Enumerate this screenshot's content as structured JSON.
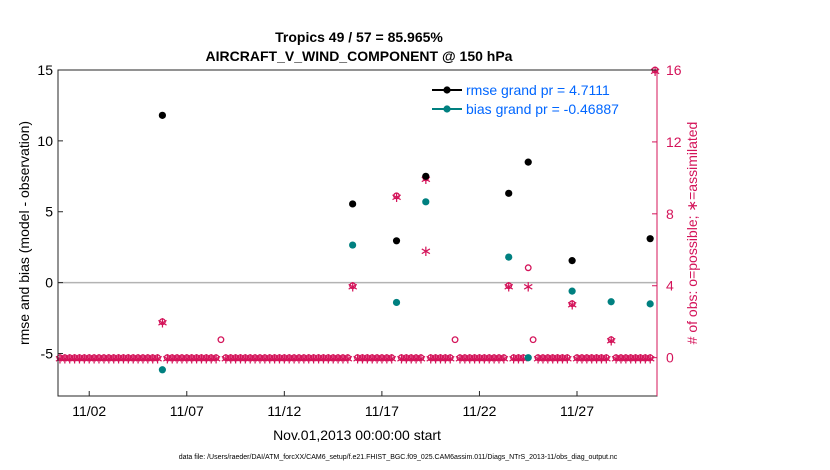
{
  "chart_data": {
    "type": "scatter",
    "title_line1": "Tropics 49 / 57 = 85.965%",
    "title_line2": "AIRCRAFT_V_WIND_COMPONENT @ 150 hPa",
    "xlabel": "Nov.01,2013 00:00:00 start",
    "ylabel_left": "rmse and bias (model - observation)",
    "ylabel_right": "# of obs: o=possible; ∗=assimilated",
    "footer": "data file: /Users/raeder/DAI/ATM_forcXX/CAM6_setup/f.e21.FHIST_BGC.f09_025.CAM6assim.011/Diags_NTrS_2013-11/obs_diag_output.nc",
    "x_range_days": [
      0.4,
      31.1
    ],
    "x_ticks": [
      {
        "day": 2,
        "label": "11/02"
      },
      {
        "day": 7,
        "label": "11/07"
      },
      {
        "day": 12,
        "label": "11/12"
      },
      {
        "day": 17,
        "label": "11/17"
      },
      {
        "day": 22,
        "label": "11/22"
      },
      {
        "day": 27,
        "label": "11/27"
      }
    ],
    "ylim_left": [
      -8,
      15
    ],
    "yticks_left": [
      {
        "v": -5,
        "label": "-5"
      },
      {
        "v": 0,
        "label": "0"
      },
      {
        "v": 5,
        "label": "5"
      },
      {
        "v": 10,
        "label": "10"
      },
      {
        "v": 15,
        "label": "15"
      }
    ],
    "ylim_right": [
      -2.133,
      16
    ],
    "yticks_right": [
      {
        "v": 0,
        "label": "0"
      },
      {
        "v": 4,
        "label": "4"
      },
      {
        "v": 8,
        "label": "8"
      },
      {
        "v": 12,
        "label": "12"
      },
      {
        "v": 16,
        "label": "16"
      }
    ],
    "legend": [
      {
        "name": "rmse grand pr = 4.7111",
        "color": "#000000"
      },
      {
        "name": "bias grand pr = -0.46887",
        "color": "#008080"
      }
    ],
    "colors": {
      "rmse": "#000000",
      "bias": "#008080",
      "obs": "#d4145a",
      "zero_line": "#b3b3b3",
      "axis": "#262626",
      "legend_text": "#0066ff"
    },
    "rmse": [
      {
        "x": 5.75,
        "y": 11.8
      },
      {
        "x": 15.5,
        "y": 5.55
      },
      {
        "x": 17.75,
        "y": 2.95
      },
      {
        "x": 19.25,
        "y": 7.5
      },
      {
        "x": 23.5,
        "y": 6.3
      },
      {
        "x": 24.5,
        "y": 8.5
      },
      {
        "x": 26.75,
        "y": 1.55
      },
      {
        "x": 30.75,
        "y": 3.1
      }
    ],
    "bias": [
      {
        "x": 5.75,
        "y": -6.15
      },
      {
        "x": 15.5,
        "y": 2.65
      },
      {
        "x": 17.75,
        "y": -1.4
      },
      {
        "x": 19.25,
        "y": 5.7
      },
      {
        "x": 23.5,
        "y": 1.8
      },
      {
        "x": 24.5,
        "y": -5.3
      },
      {
        "x": 26.75,
        "y": -0.6
      },
      {
        "x": 28.75,
        "y": -1.35
      },
      {
        "x": 30.75,
        "y": -1.5
      }
    ],
    "obs_possible": [
      {
        "x": 5.75,
        "y": 2
      },
      {
        "x": 8.75,
        "y": 1
      },
      {
        "x": 15.5,
        "y": 4
      },
      {
        "x": 17.75,
        "y": 9
      },
      {
        "x": 19.25,
        "y": 10
      },
      {
        "x": 20.75,
        "y": 1
      },
      {
        "x": 23.5,
        "y": 4
      },
      {
        "x": 24.5,
        "y": 5
      },
      {
        "x": 24.75,
        "y": 1
      },
      {
        "x": 26.75,
        "y": 3
      },
      {
        "x": 28.75,
        "y": 1
      },
      {
        "x": 31.0,
        "y": 16
      }
    ],
    "obs_assimilated": [
      {
        "x": 5.75,
        "y": 2
      },
      {
        "x": 15.5,
        "y": 4
      },
      {
        "x": 17.75,
        "y": 9
      },
      {
        "x": 19.25,
        "y": 10
      },
      {
        "x": 19.25,
        "y": 6
      },
      {
        "x": 23.5,
        "y": 4
      },
      {
        "x": 24.5,
        "y": 4
      },
      {
        "x": 26.75,
        "y": 3
      },
      {
        "x": 28.75,
        "y": 1
      },
      {
        "x": 31.0,
        "y": 16
      }
    ]
  }
}
